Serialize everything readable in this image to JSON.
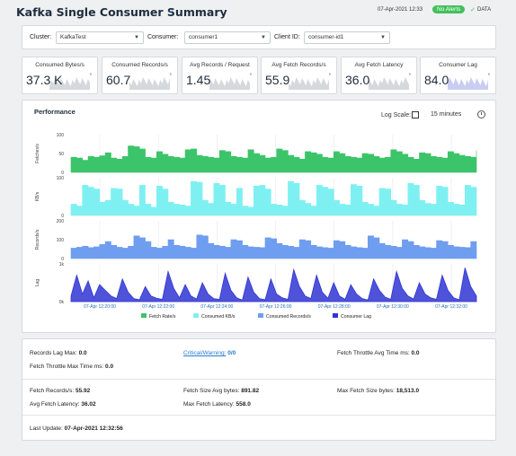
{
  "header": {
    "title": "Kafka Single Consumer Summary",
    "timestamp": "07-Apr-2021 12:33",
    "alert_badge": "No Alerts",
    "data_label": "DATA",
    "colors": {
      "badge": "#42c05a",
      "accent": "#2a7bd1"
    }
  },
  "filters": {
    "cluster_label": "Cluster:",
    "cluster_value": "KafkaTest",
    "consumer_label": "Consumer:",
    "consumer_value": "consumer1",
    "client_label": "Client ID:",
    "client_value": "consumer-id1"
  },
  "kpis": [
    {
      "title": "Consumed Bytes/s",
      "value": "37.3 K"
    },
    {
      "title": "Consumed Records/s",
      "value": "60.7"
    },
    {
      "title": "Avg Records / Request",
      "value": "1.45"
    },
    {
      "title": "Avg Fetch Records/s",
      "value": "55.9"
    },
    {
      "title": "Avg Fetch Latency",
      "value": "36.0"
    },
    {
      "title": "Consumer Lag",
      "value": "84.0"
    }
  ],
  "performance": {
    "title": "Performance",
    "log_scale_label": "Log Scale:",
    "time_range": "15 minutes"
  },
  "chart_data": {
    "type": "area",
    "x_ticks": [
      "07-Apr 12:20:00",
      "07-Apr 12:22:00",
      "07-Apr 12:24:00",
      "07-Apr 12:26:00",
      "07-Apr 12:28:00",
      "07-Apr 12:30:00",
      "07-Apr 12:32:00"
    ],
    "panels": [
      {
        "ylabel": "Fetches/s",
        "yticks": [
          "100",
          "50",
          "0"
        ],
        "ylim": [
          0,
          100
        ],
        "color": "#3cc46a",
        "values": [
          40,
          38,
          32,
          42,
          40,
          44,
          52,
          38,
          35,
          42,
          70,
          68,
          62,
          40,
          38,
          55,
          48,
          42,
          40,
          38,
          60,
          62,
          45,
          42,
          40,
          38,
          58,
          55,
          42,
          40,
          38,
          60,
          50,
          45,
          38,
          40,
          62,
          58,
          45,
          40,
          35,
          55,
          52,
          48,
          40,
          38,
          55,
          50,
          42,
          40,
          38,
          50,
          48,
          42,
          38,
          40,
          60,
          55,
          48,
          40,
          35,
          52,
          50,
          42,
          40,
          38,
          55,
          50,
          45,
          42,
          40,
          58
        ]
      },
      {
        "ylabel": "KB/s",
        "yticks": [
          "100",
          "0"
        ],
        "ylim": [
          0,
          100
        ],
        "color": "#7ff0f2",
        "values": [
          30,
          25,
          80,
          75,
          70,
          35,
          40,
          72,
          70,
          40,
          30,
          25,
          80,
          30,
          22,
          78,
          70,
          35,
          30,
          28,
          25,
          90,
          88,
          40,
          32,
          85,
          80,
          35,
          30,
          72,
          25,
          22,
          78,
          80,
          70,
          30,
          28,
          25,
          90,
          85,
          40,
          32,
          25,
          80,
          75,
          70,
          40,
          30,
          28,
          82,
          78,
          35,
          30,
          25,
          72,
          70,
          40,
          30,
          28,
          85,
          80,
          40,
          32,
          30,
          78,
          75,
          35,
          30,
          28,
          80,
          75,
          40
        ]
      },
      {
        "ylabel": "Records/s",
        "yticks": [
          "200",
          "100",
          "0"
        ],
        "ylim": [
          0,
          200
        ],
        "color": "#6f9df0",
        "values": [
          55,
          60,
          65,
          58,
          62,
          75,
          90,
          70,
          60,
          55,
          65,
          120,
          110,
          90,
          60,
          55,
          65,
          100,
          70,
          65,
          60,
          55,
          125,
          120,
          80,
          70,
          65,
          60,
          100,
          95,
          70,
          62,
          60,
          58,
          110,
          105,
          80,
          70,
          65,
          60,
          100,
          95,
          70,
          62,
          58,
          55,
          95,
          90,
          70,
          62,
          58,
          55,
          120,
          110,
          80,
          70,
          65,
          60,
          100,
          90,
          70,
          62,
          58,
          55,
          95,
          90,
          70,
          62,
          60,
          58,
          90,
          85
        ]
      },
      {
        "ylabel": "Lag",
        "yticks": [
          "1k",
          "0k"
        ],
        "ylim": [
          0,
          1000
        ],
        "color": "#2f35d4",
        "values": [
          150,
          700,
          200,
          550,
          100,
          450,
          300,
          150,
          80,
          600,
          250,
          80,
          50,
          400,
          150,
          90,
          60,
          800,
          350,
          100,
          450,
          150,
          70,
          500,
          200,
          80,
          60,
          750,
          300,
          100,
          40,
          650,
          250,
          80,
          50,
          600,
          200,
          100,
          60,
          850,
          400,
          150,
          80,
          700,
          250,
          90,
          500,
          150,
          60,
          450,
          200,
          80,
          40,
          600,
          300,
          120,
          60,
          800,
          350,
          150,
          70,
          500,
          200,
          100,
          60,
          700,
          300,
          100,
          50,
          900,
          400,
          150
        ]
      }
    ],
    "legend": [
      {
        "name": "Fetch Rate/s",
        "color": "#3cc46a"
      },
      {
        "name": "Consumed KB/s",
        "color": "#7ff0f2"
      },
      {
        "name": "Consumed Records/s",
        "color": "#6f9df0"
      },
      {
        "name": "Consumer Lag",
        "color": "#2f35d4"
      }
    ]
  },
  "info": {
    "records_lag_max_label": "Records Lag Max:",
    "records_lag_max": "0.0",
    "critical_warning_label": "Critical/Warning:",
    "critical_warning": "0/0",
    "fetch_throttle_avg_label": "Fetch Throttle Avg Time ms:",
    "fetch_throttle_avg": "0.0",
    "fetch_throttle_max_label": "Fetch Throttle Max Time ms:",
    "fetch_throttle_max": "0.0",
    "fetch_records_label": "Fetch Records/s:",
    "fetch_records": "55.92",
    "fetch_size_avg_label": "Fetch Size Avg bytes:",
    "fetch_size_avg": "891.82",
    "max_fetch_size_label": "Max Fetch Size bytes:",
    "max_fetch_size": "18,513.0",
    "avg_fetch_latency_label": "Avg Fetch Latency:",
    "avg_fetch_latency": "36.02",
    "max_fetch_latency_label": "Max Fetch Latency:",
    "max_fetch_latency": "558.0",
    "last_update_label": "Last Update:",
    "last_update": "07-Apr-2021 12:32:56"
  }
}
